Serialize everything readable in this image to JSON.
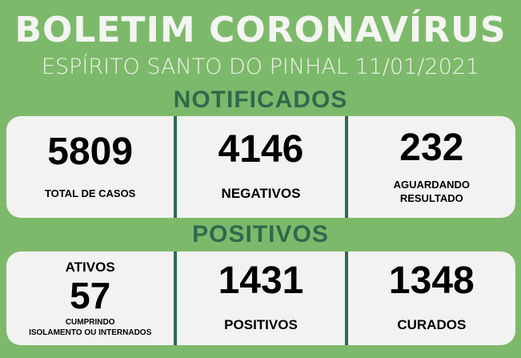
{
  "title": "BOLETIM CORONAVÍRUS",
  "subtitle": "ESPÍRITO SANTO DO PINHAL 11/01/2021",
  "notificados": {
    "heading": "NOTIFICADOS",
    "items": [
      {
        "value": "5809",
        "label": "TOTAL DE CASOS"
      },
      {
        "value": "4146",
        "label": "NEGATIVOS"
      },
      {
        "value": "232",
        "label": "AGUARDANDO RESULTADO"
      }
    ]
  },
  "positivos": {
    "heading": "POSITIVOS",
    "ativos": {
      "top": "ATIVOS",
      "value": "57",
      "line1": "CUMPRINDO",
      "line2": "ISOLAMENTO OU INTERNADOS"
    },
    "items": [
      {
        "value": "1431",
        "label": "POSITIVOS"
      },
      {
        "value": "1348",
        "label": "CURADOS"
      }
    ]
  },
  "colors": {
    "background": "#7db96b",
    "accent": "#2f6a4c",
    "panel": "#f1f2f1"
  }
}
